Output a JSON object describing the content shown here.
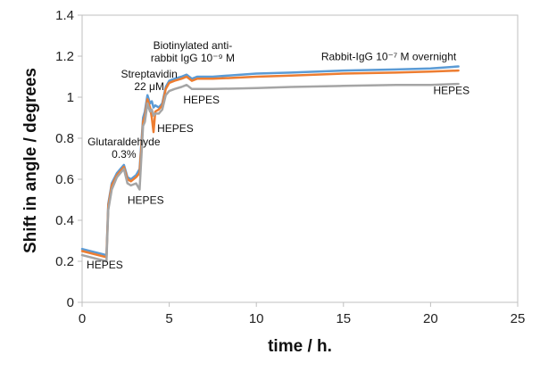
{
  "chart_data": {
    "type": "line",
    "title": "",
    "xlabel": "time / h.",
    "ylabel": "Shift in angle / degrees",
    "xlim": [
      0,
      25
    ],
    "ylim": [
      0,
      1.4
    ],
    "xticks": [
      "0",
      "5",
      "10",
      "15",
      "20",
      "25"
    ],
    "yticks": [
      "0",
      "0.2",
      "0.4",
      "0.6",
      "0.8",
      "1",
      "1.2",
      "1.4"
    ],
    "grid": false,
    "legend": "none",
    "series": [
      {
        "color": "#5b9bd5",
        "x": [
          0,
          1.4,
          1.5,
          1.7,
          2.0,
          2.4,
          2.6,
          2.8,
          3.1,
          3.3,
          3.5,
          3.6,
          3.75,
          3.9,
          4.0,
          4.1,
          4.2,
          4.4,
          4.6,
          4.8,
          5.0,
          5.3,
          5.7,
          6.0,
          6.3,
          6.6,
          7.5,
          10,
          12,
          15,
          18,
          20,
          21.6
        ],
        "y": [
          0.26,
          0.23,
          0.48,
          0.58,
          0.63,
          0.67,
          0.61,
          0.6,
          0.62,
          0.65,
          0.9,
          0.93,
          1.01,
          0.97,
          0.98,
          0.95,
          0.96,
          0.95,
          0.97,
          1.05,
          1.08,
          1.09,
          1.1,
          1.11,
          1.09,
          1.1,
          1.1,
          1.115,
          1.12,
          1.13,
          1.135,
          1.14,
          1.15
        ]
      },
      {
        "color": "#ed7d31",
        "x": [
          0,
          1.4,
          1.5,
          1.7,
          2.0,
          2.4,
          2.6,
          2.8,
          3.1,
          3.3,
          3.5,
          3.6,
          3.75,
          3.9,
          4.0,
          4.1,
          4.2,
          4.4,
          4.6,
          4.8,
          5.0,
          5.3,
          5.7,
          6.0,
          6.3,
          6.6,
          7.5,
          10,
          12,
          15,
          18,
          20,
          21.6
        ],
        "y": [
          0.25,
          0.22,
          0.47,
          0.57,
          0.62,
          0.66,
          0.6,
          0.59,
          0.61,
          0.63,
          0.88,
          0.91,
          0.99,
          0.95,
          0.9,
          0.83,
          0.93,
          0.94,
          0.96,
          1.04,
          1.07,
          1.08,
          1.09,
          1.1,
          1.08,
          1.09,
          1.09,
          1.1,
          1.105,
          1.115,
          1.12,
          1.125,
          1.13
        ]
      },
      {
        "color": "#a5a5a5",
        "x": [
          0,
          1.4,
          1.5,
          1.7,
          2.0,
          2.4,
          2.6,
          2.8,
          3.1,
          3.3,
          3.5,
          3.6,
          3.75,
          3.9,
          4.0,
          4.1,
          4.2,
          4.4,
          4.6,
          4.8,
          5.0,
          5.3,
          5.7,
          6.0,
          6.3,
          6.6,
          7.5,
          10,
          12,
          15,
          18,
          20,
          21.6
        ],
        "y": [
          0.23,
          0.2,
          0.45,
          0.55,
          0.61,
          0.65,
          0.58,
          0.57,
          0.58,
          0.55,
          0.86,
          0.88,
          0.97,
          0.93,
          0.94,
          0.91,
          0.92,
          0.92,
          0.94,
          1.01,
          1.03,
          1.04,
          1.05,
          1.06,
          1.04,
          1.04,
          1.04,
          1.045,
          1.05,
          1.055,
          1.06,
          1.06,
          1.065
        ]
      }
    ],
    "annotations": [
      {
        "id": "ann-hepes-1",
        "lines": [
          "HEPES"
        ],
        "x": 1.3,
        "y": 0.165,
        "anchor": "middle"
      },
      {
        "id": "ann-glutaraldehyde",
        "lines": [
          "Glutaraldehyde",
          "0.3%"
        ],
        "x": 2.4,
        "y": 0.765,
        "anchor": "middle"
      },
      {
        "id": "ann-hepes-2",
        "lines": [
          "HEPES"
        ],
        "x": 3.65,
        "y": 0.48,
        "anchor": "middle"
      },
      {
        "id": "ann-streptavidin",
        "lines": [
          "Streptavidin",
          "22 μM"
        ],
        "x": 3.85,
        "y": 1.095,
        "anchor": "middle"
      },
      {
        "id": "ann-hepes-3",
        "lines": [
          "HEPES"
        ],
        "x": 5.35,
        "y": 0.83,
        "anchor": "middle"
      },
      {
        "id": "ann-biotinylated",
        "lines": [
          "Biotinylated anti-",
          "rabbit IgG  10⁻⁹ M"
        ],
        "x": 6.35,
        "y": 1.235,
        "anchor": "middle"
      },
      {
        "id": "ann-hepes-4",
        "lines": [
          "HEPES"
        ],
        "x": 6.85,
        "y": 0.97,
        "anchor": "middle"
      },
      {
        "id": "ann-rabbit-igg",
        "lines": [
          "Rabbit-IgG  10⁻⁷ M overnight"
        ],
        "x": 17.6,
        "y": 1.18,
        "anchor": "middle"
      },
      {
        "id": "ann-hepes-5",
        "lines": [
          "HEPES"
        ],
        "x": 21.2,
        "y": 1.015,
        "anchor": "middle"
      }
    ]
  }
}
